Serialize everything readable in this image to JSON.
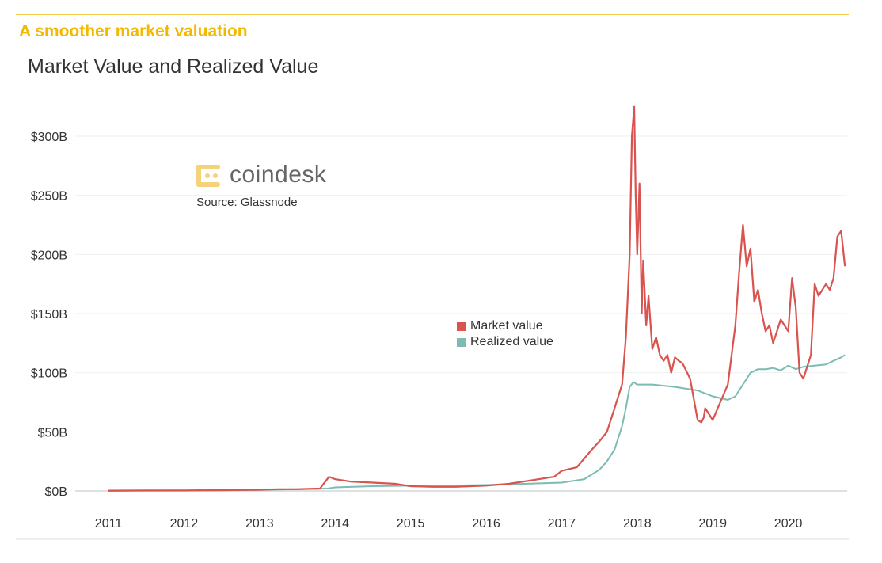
{
  "header": {
    "headline": "A smoother market valuation",
    "chart_title": "Market Value and Realized Value"
  },
  "brand": {
    "name": "coindesk",
    "source": "Source: Glassnode",
    "icon": "coindesk-logo-icon",
    "color": "#f5d37a"
  },
  "colors": {
    "market": "#d9534f",
    "realized": "#7cbcb2",
    "headline": "#f5b800",
    "grid": "#eef0f2"
  },
  "chart_data": {
    "type": "line",
    "title": "Market Value and Realized Value",
    "xlabel": "",
    "ylabel": "",
    "xlim": [
      2011.0,
      2020.75
    ],
    "ylim": [
      0,
      300
    ],
    "y_ticks": [
      0,
      50,
      100,
      150,
      200,
      250,
      300
    ],
    "y_tick_labels": [
      "$0B",
      "$50B",
      "$100B",
      "$150B",
      "$200B",
      "$250B",
      "$300B"
    ],
    "x_ticks": [
      2011,
      2012,
      2013,
      2014,
      2015,
      2016,
      2017,
      2018,
      2019,
      2020
    ],
    "x_tick_labels": [
      "2011",
      "2012",
      "2013",
      "2014",
      "2015",
      "2016",
      "2017",
      "2018",
      "2019",
      "2020"
    ],
    "legend_position": "center",
    "series": [
      {
        "name": "Market value",
        "x": [
          2011.0,
          2011.5,
          2012.0,
          2012.5,
          2013.0,
          2013.25,
          2013.5,
          2013.8,
          2013.92,
          2014.0,
          2014.2,
          2014.5,
          2014.8,
          2015.0,
          2015.3,
          2015.6,
          2016.0,
          2016.3,
          2016.6,
          2016.9,
          2017.0,
          2017.2,
          2017.4,
          2017.5,
          2017.6,
          2017.7,
          2017.8,
          2017.85,
          2017.9,
          2017.93,
          2017.96,
          2017.98,
          2018.0,
          2018.03,
          2018.06,
          2018.08,
          2018.12,
          2018.15,
          2018.2,
          2018.25,
          2018.3,
          2018.35,
          2018.4,
          2018.45,
          2018.5,
          2018.55,
          2018.6,
          2018.7,
          2018.8,
          2018.85,
          2018.88,
          2018.9,
          2018.95,
          2019.0,
          2019.1,
          2019.2,
          2019.3,
          2019.35,
          2019.4,
          2019.45,
          2019.5,
          2019.55,
          2019.6,
          2019.65,
          2019.7,
          2019.75,
          2019.8,
          2019.9,
          2020.0,
          2020.05,
          2020.1,
          2020.15,
          2020.2,
          2020.3,
          2020.35,
          2020.4,
          2020.5,
          2020.55,
          2020.6,
          2020.65,
          2020.7,
          2020.75
        ],
        "values": [
          0.3,
          0.5,
          0.5,
          0.7,
          1.0,
          1.5,
          1.5,
          2.0,
          12,
          10,
          8,
          7,
          6,
          4,
          3.5,
          3.5,
          4.5,
          6,
          9,
          12,
          17,
          20,
          35,
          42,
          50,
          70,
          90,
          130,
          200,
          300,
          325,
          250,
          200,
          260,
          150,
          195,
          140,
          165,
          120,
          130,
          115,
          110,
          115,
          100,
          113,
          110,
          108,
          95,
          60,
          58,
          62,
          70,
          65,
          60,
          75,
          90,
          140,
          185,
          225,
          190,
          205,
          160,
          170,
          150,
          135,
          140,
          125,
          145,
          135,
          180,
          155,
          100,
          95,
          115,
          175,
          165,
          175,
          170,
          180,
          215,
          220,
          190
        ]
      },
      {
        "name": "Realized value",
        "x": [
          2011.0,
          2012.0,
          2013.0,
          2013.9,
          2014.0,
          2014.5,
          2015.0,
          2015.5,
          2016.0,
          2016.5,
          2017.0,
          2017.3,
          2017.5,
          2017.6,
          2017.7,
          2017.8,
          2017.85,
          2017.9,
          2017.95,
          2018.0,
          2018.2,
          2018.5,
          2018.8,
          2019.0,
          2019.2,
          2019.3,
          2019.4,
          2019.5,
          2019.6,
          2019.7,
          2019.8,
          2019.9,
          2020.0,
          2020.1,
          2020.2,
          2020.35,
          2020.5,
          2020.6,
          2020.7,
          2020.75
        ],
        "values": [
          0.1,
          0.3,
          0.8,
          2,
          3,
          4,
          4.5,
          4.5,
          5,
          6,
          7,
          10,
          18,
          25,
          35,
          55,
          70,
          88,
          92,
          90,
          90,
          88,
          85,
          80,
          77,
          80,
          90,
          100,
          103,
          103,
          104,
          102,
          106,
          103,
          105,
          106,
          107,
          110,
          113,
          115
        ]
      }
    ]
  }
}
